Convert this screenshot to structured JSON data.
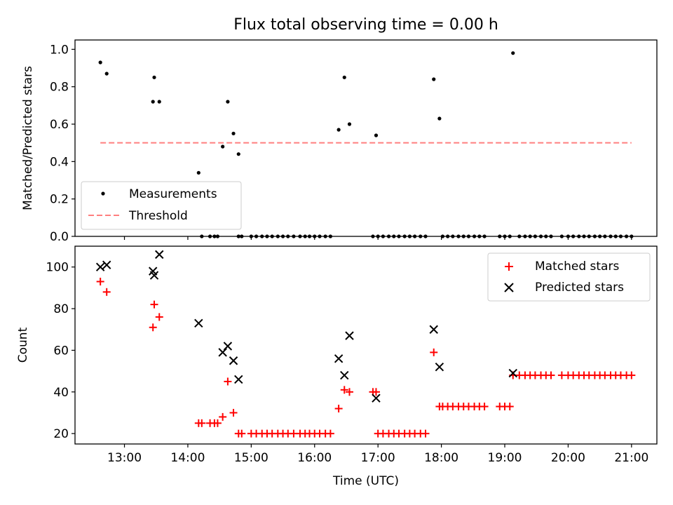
{
  "title": "Flux total observing time = 0.00 h",
  "chart_data": [
    {
      "type": "scatter",
      "ylabel": "Matched/Predicted stars",
      "xlim": [
        12.22,
        21.4
      ],
      "ylim": [
        0,
        1.05
      ],
      "yticks": [
        "0.0",
        "0.2",
        "0.4",
        "0.6",
        "0.8",
        "1.0"
      ],
      "legend_position": "lower-left",
      "grid": false,
      "series": [
        {
          "name": "Measurements",
          "marker": "dot",
          "color": "#000000",
          "x": [
            12.62,
            12.72,
            13.45,
            13.47,
            13.55,
            14.17,
            14.55,
            14.63,
            14.72,
            14.8,
            16.38,
            16.47,
            16.55,
            16.97,
            17.88,
            17.97,
            19.13,
            14.22,
            14.35,
            14.42,
            14.47,
            14.8,
            14.85,
            15.0,
            15.08,
            15.17,
            15.25,
            15.33,
            15.42,
            15.5,
            15.58,
            15.67,
            15.77,
            15.85,
            15.92,
            16.0,
            16.08,
            16.17,
            16.25,
            16.92,
            17.0,
            17.08,
            17.17,
            17.25,
            17.33,
            17.42,
            17.5,
            17.58,
            17.67,
            17.75,
            18.02,
            18.1,
            18.18,
            18.27,
            18.35,
            18.43,
            18.52,
            18.6,
            18.68,
            18.92,
            19.0,
            19.08,
            19.23,
            19.32,
            19.4,
            19.48,
            19.57,
            19.65,
            19.73,
            19.9,
            20.0,
            20.08,
            20.17,
            20.25,
            20.33,
            20.42,
            20.5,
            20.58,
            20.67,
            20.75,
            20.83,
            20.92,
            21.0
          ],
          "y": [
            0.93,
            0.87,
            0.72,
            0.85,
            0.72,
            0.34,
            0.48,
            0.72,
            0.55,
            0.44,
            0.57,
            0.85,
            0.6,
            0.54,
            0.84,
            0.63,
            0.98,
            0,
            0,
            0,
            0,
            0,
            0,
            0,
            0,
            0,
            0,
            0,
            0,
            0,
            0,
            0,
            0,
            0,
            0,
            0,
            0,
            0,
            0,
            0,
            0,
            0,
            0,
            0,
            0,
            0,
            0,
            0,
            0,
            0,
            0,
            0,
            0,
            0,
            0,
            0,
            0,
            0,
            0,
            0,
            0,
            0,
            0,
            0,
            0,
            0,
            0,
            0,
            0,
            0,
            0,
            0,
            0,
            0,
            0,
            0,
            0,
            0,
            0,
            0,
            0,
            0,
            0
          ]
        },
        {
          "name": "Threshold",
          "marker": "dashed-line",
          "color": "#ff7f7f",
          "x": [
            12.62,
            21.0
          ],
          "y": [
            0.5,
            0.5
          ]
        }
      ]
    },
    {
      "type": "scatter",
      "xlabel": "Time (UTC)",
      "ylabel": "Count",
      "xlim": [
        12.22,
        21.4
      ],
      "ylim": [
        15,
        110
      ],
      "yticks": [
        "20",
        "40",
        "60",
        "80",
        "100"
      ],
      "xticks": [
        "13:00",
        "14:00",
        "15:00",
        "16:00",
        "17:00",
        "18:00",
        "19:00",
        "20:00",
        "21:00"
      ],
      "legend_position": "upper-right",
      "grid": false,
      "series": [
        {
          "name": "Matched stars",
          "marker": "plus",
          "color": "#ff0000",
          "x": [
            12.62,
            12.72,
            13.45,
            13.47,
            13.55,
            14.17,
            14.22,
            14.35,
            14.42,
            14.47,
            14.55,
            14.63,
            14.72,
            14.8,
            14.85,
            15.0,
            15.08,
            15.17,
            15.25,
            15.33,
            15.42,
            15.5,
            15.58,
            15.67,
            15.77,
            15.85,
            15.92,
            16.0,
            16.08,
            16.17,
            16.25,
            16.38,
            16.47,
            16.55,
            16.92,
            16.97,
            17.0,
            17.08,
            17.17,
            17.25,
            17.33,
            17.42,
            17.5,
            17.58,
            17.67,
            17.75,
            17.88,
            17.97,
            18.02,
            18.1,
            18.18,
            18.27,
            18.35,
            18.43,
            18.52,
            18.6,
            18.68,
            18.92,
            19.0,
            19.08,
            19.13,
            19.23,
            19.32,
            19.4,
            19.48,
            19.57,
            19.65,
            19.73,
            19.9,
            20.0,
            20.08,
            20.17,
            20.25,
            20.33,
            20.42,
            20.5,
            20.58,
            20.67,
            20.75,
            20.83,
            20.92,
            21.0
          ],
          "y": [
            93,
            88,
            71,
            82,
            76,
            25,
            25,
            25,
            25,
            25,
            28,
            45,
            30,
            20,
            20,
            20,
            20,
            20,
            20,
            20,
            20,
            20,
            20,
            20,
            20,
            20,
            20,
            20,
            20,
            20,
            20,
            32,
            41,
            40,
            40,
            40,
            20,
            20,
            20,
            20,
            20,
            20,
            20,
            20,
            20,
            20,
            59,
            33,
            33,
            33,
            33,
            33,
            33,
            33,
            33,
            33,
            33,
            33,
            33,
            33,
            48,
            48,
            48,
            48,
            48,
            48,
            48,
            48,
            48,
            48,
            48,
            48,
            48,
            48,
            48,
            48,
            48,
            48,
            48,
            48,
            48,
            48
          ]
        },
        {
          "name": "Predicted stars",
          "marker": "x",
          "color": "#000000",
          "x": [
            12.62,
            12.72,
            13.45,
            13.47,
            13.55,
            14.17,
            14.55,
            14.63,
            14.72,
            14.8,
            16.38,
            16.47,
            16.55,
            16.97,
            17.88,
            17.97,
            19.13
          ],
          "y": [
            100,
            101,
            98,
            96,
            106,
            73,
            59,
            62,
            55,
            46,
            56,
            48,
            67,
            37,
            70,
            52,
            49
          ]
        }
      ]
    }
  ]
}
